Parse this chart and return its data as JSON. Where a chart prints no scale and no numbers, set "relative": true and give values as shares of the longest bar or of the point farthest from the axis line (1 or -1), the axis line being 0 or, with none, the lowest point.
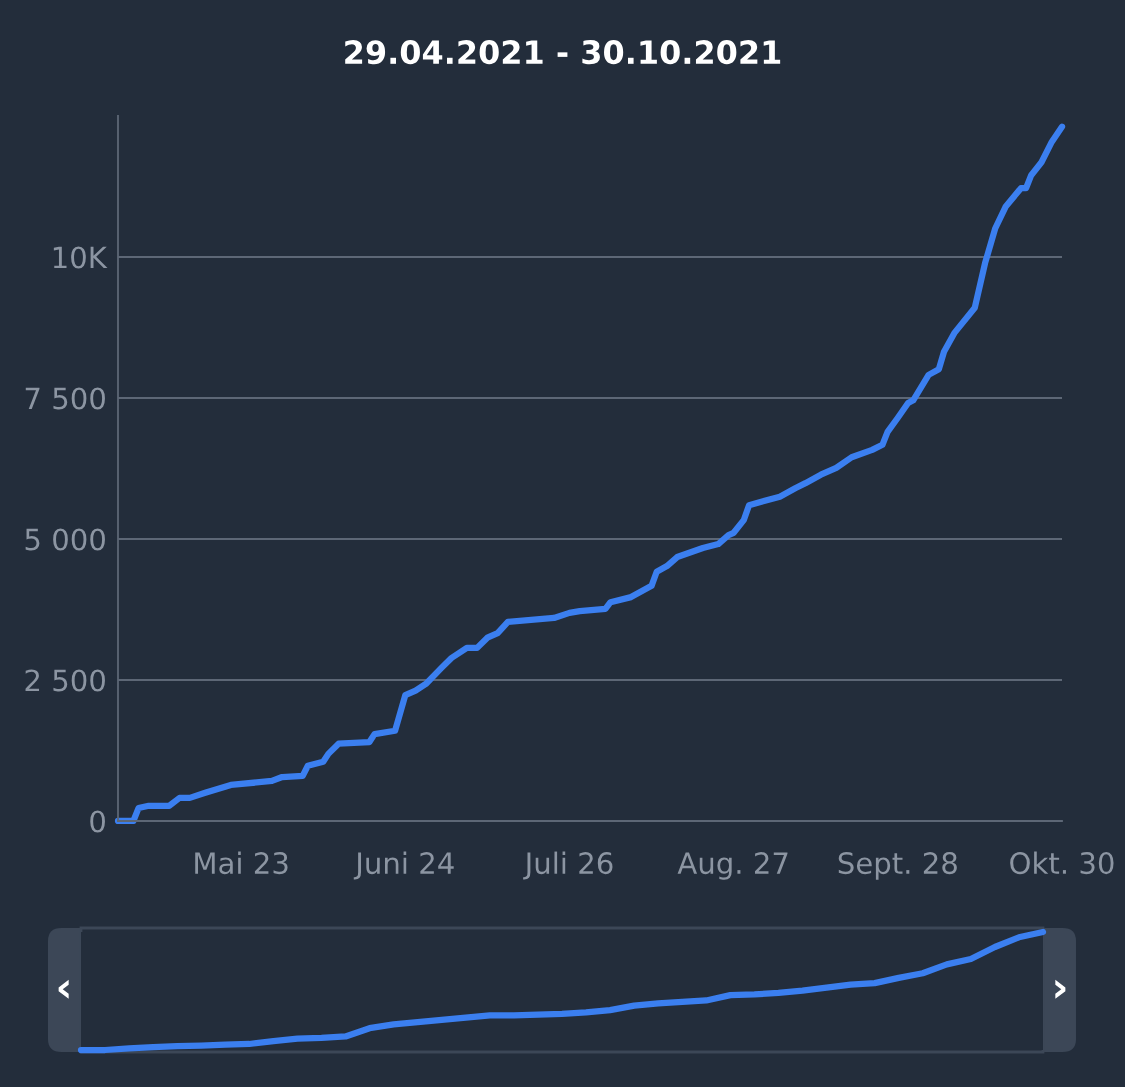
{
  "chart_data": [
    {
      "type": "line",
      "title": "29.04.2021 - 30.10.2021",
      "color": "#3b7ff0",
      "x": [
        "2021-04-29",
        "2021-05-02",
        "2021-05-03",
        "2021-05-05",
        "2021-05-09",
        "2021-05-11",
        "2021-05-13",
        "2021-05-16",
        "2021-05-21",
        "2021-05-29",
        "2021-05-31",
        "2021-06-04",
        "2021-06-05",
        "2021-06-08",
        "2021-06-09",
        "2021-06-11",
        "2021-06-17",
        "2021-06-18",
        "2021-06-22",
        "2021-06-24",
        "2021-06-26",
        "2021-06-28",
        "2021-07-01",
        "2021-07-03",
        "2021-07-06",
        "2021-07-08",
        "2021-07-10",
        "2021-07-12",
        "2021-07-14",
        "2021-07-23",
        "2021-07-26",
        "2021-07-28",
        "2021-08-02",
        "2021-08-03",
        "2021-08-07",
        "2021-08-11",
        "2021-08-12",
        "2021-08-14",
        "2021-08-16",
        "2021-08-21",
        "2021-08-24",
        "2021-08-26",
        "2021-08-27",
        "2021-08-29",
        "2021-08-30",
        "2021-09-05",
        "2021-09-08",
        "2021-09-10",
        "2021-09-13",
        "2021-09-16",
        "2021-09-19",
        "2021-09-23",
        "2021-09-25",
        "2021-09-26",
        "2021-09-28",
        "2021-09-30",
        "2021-10-01",
        "2021-10-04",
        "2021-10-06",
        "2021-10-07",
        "2021-10-09",
        "2021-10-13",
        "2021-10-15",
        "2021-10-17",
        "2021-10-19",
        "2021-10-22",
        "2021-10-23",
        "2021-10-24",
        "2021-10-26",
        "2021-10-28",
        "2021-10-30"
      ],
      "values": [
        0,
        0,
        230,
        270,
        270,
        410,
        410,
        500,
        640,
        710,
        780,
        800,
        980,
        1050,
        1190,
        1370,
        1400,
        1540,
        1600,
        2230,
        2310,
        2430,
        2710,
        2890,
        3070,
        3070,
        3250,
        3330,
        3530,
        3600,
        3690,
        3720,
        3760,
        3880,
        3970,
        4170,
        4420,
        4520,
        4680,
        4840,
        4910,
        5070,
        5110,
        5340,
        5600,
        5750,
        5900,
        5990,
        6140,
        6260,
        6450,
        6580,
        6670,
        6900,
        7150,
        7410,
        7460,
        7910,
        8010,
        8320,
        8650,
        9100,
        9890,
        10510,
        10890,
        11220,
        11220,
        11450,
        11680,
        12040,
        12310
      ],
      "xlim": [
        "2021-04-29",
        "2021-10-30"
      ],
      "xticks": [
        {
          "value": "2021-05-23",
          "label": "Mai 23"
        },
        {
          "value": "2021-06-24",
          "label": "Juni 24"
        },
        {
          "value": "2021-07-26",
          "label": "Juli 26"
        },
        {
          "value": "2021-08-27",
          "label": "Aug. 27"
        },
        {
          "value": "2021-09-28",
          "label": "Sept. 28"
        },
        {
          "value": "2021-10-30",
          "label": "Okt. 30"
        }
      ],
      "ylim": [
        0,
        12500
      ],
      "yticks": [
        0,
        {
          "value": 2500,
          "label": "2 500"
        },
        {
          "value": 5000,
          "label": "5 000"
        },
        {
          "value": 7500,
          "label": "7 500"
        },
        {
          "value": 10000,
          "label": "10K"
        }
      ],
      "grid": "y",
      "marker": "none",
      "line_style": "solid",
      "legend": false
    },
    {
      "type": "line",
      "relative": true,
      "color": "#3b7ff0",
      "marker": "none",
      "line_style": "solid",
      "legend": false,
      "categories": [
        null,
        null,
        null,
        null,
        null,
        null,
        null,
        null,
        null,
        null,
        null,
        null,
        null,
        null,
        null,
        null,
        null,
        null,
        null,
        null,
        null,
        null,
        null,
        null,
        null,
        null,
        null,
        null,
        null,
        null,
        null,
        null,
        null,
        null,
        null,
        null,
        null,
        null,
        null,
        null,
        null
      ],
      "values": [
        0,
        0,
        0.013,
        0.025,
        0.032,
        0.038,
        0.045,
        0.051,
        0.076,
        0.096,
        0.102,
        0.115,
        0.185,
        0.217,
        0.236,
        0.255,
        0.274,
        0.293,
        0.293,
        0.299,
        0.306,
        0.318,
        0.338,
        0.376,
        0.395,
        0.408,
        0.42,
        0.465,
        0.471,
        0.484,
        0.503,
        0.529,
        0.554,
        0.567,
        0.611,
        0.65,
        0.726,
        0.771,
        0.873,
        0.955,
        1
      ],
      "annotations": [
        "‹",
        "›"
      ]
    }
  ]
}
